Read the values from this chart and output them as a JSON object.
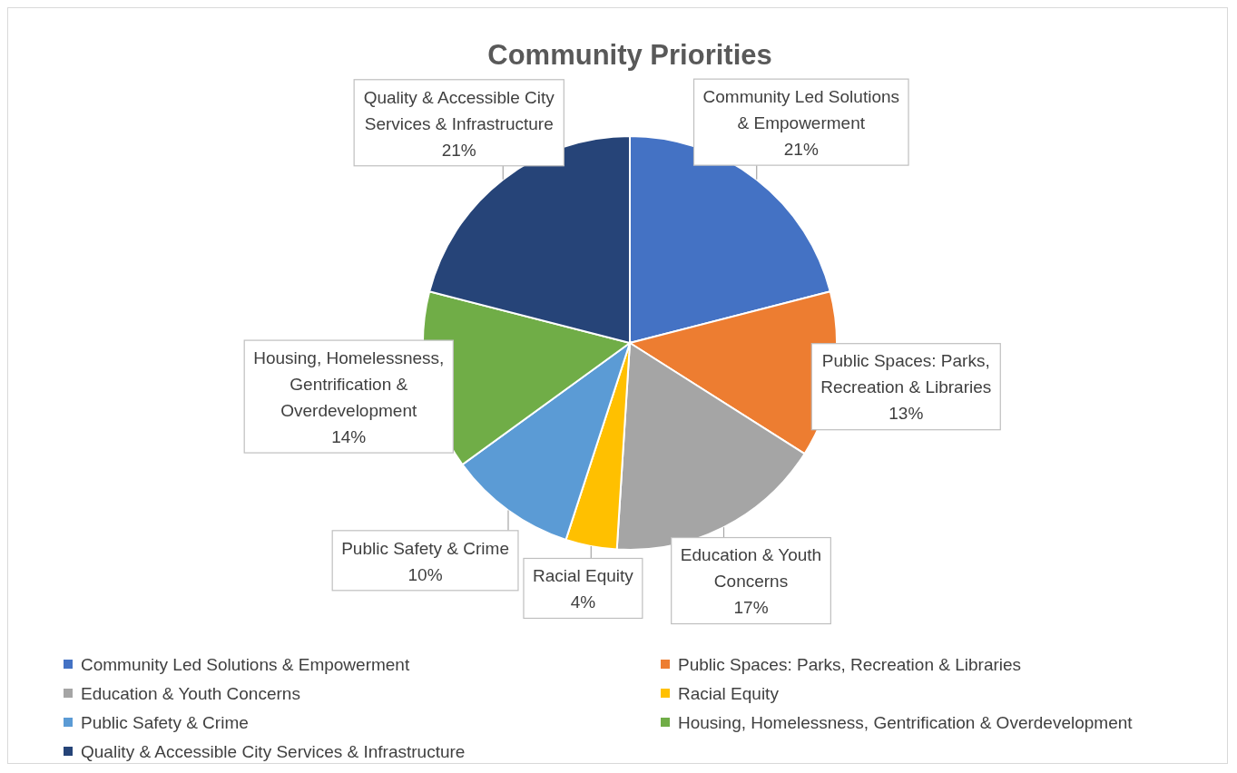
{
  "chart_data": {
    "type": "pie",
    "title": "Community Priorities",
    "categories": [
      "Community Led Solutions & Empowerment",
      "Public Spaces: Parks, Recreation & Libraries",
      "Education & Youth Concerns",
      "Racial Equity",
      "Public Safety & Crime",
      "Housing, Homelessness, Gentrification & Overdevelopment",
      "Quality & Accessible City Services & Infrastructure"
    ],
    "values": [
      21,
      13,
      17,
      4,
      10,
      14,
      21
    ],
    "colors": [
      "#4472c4",
      "#ed7d31",
      "#a5a5a5",
      "#ffc000",
      "#5b9bd5",
      "#70ad47",
      "#264478"
    ],
    "value_labels": [
      "21%",
      "13%",
      "17%",
      "4%",
      "10%",
      "14%",
      "21%"
    ],
    "legend": "bottom"
  }
}
